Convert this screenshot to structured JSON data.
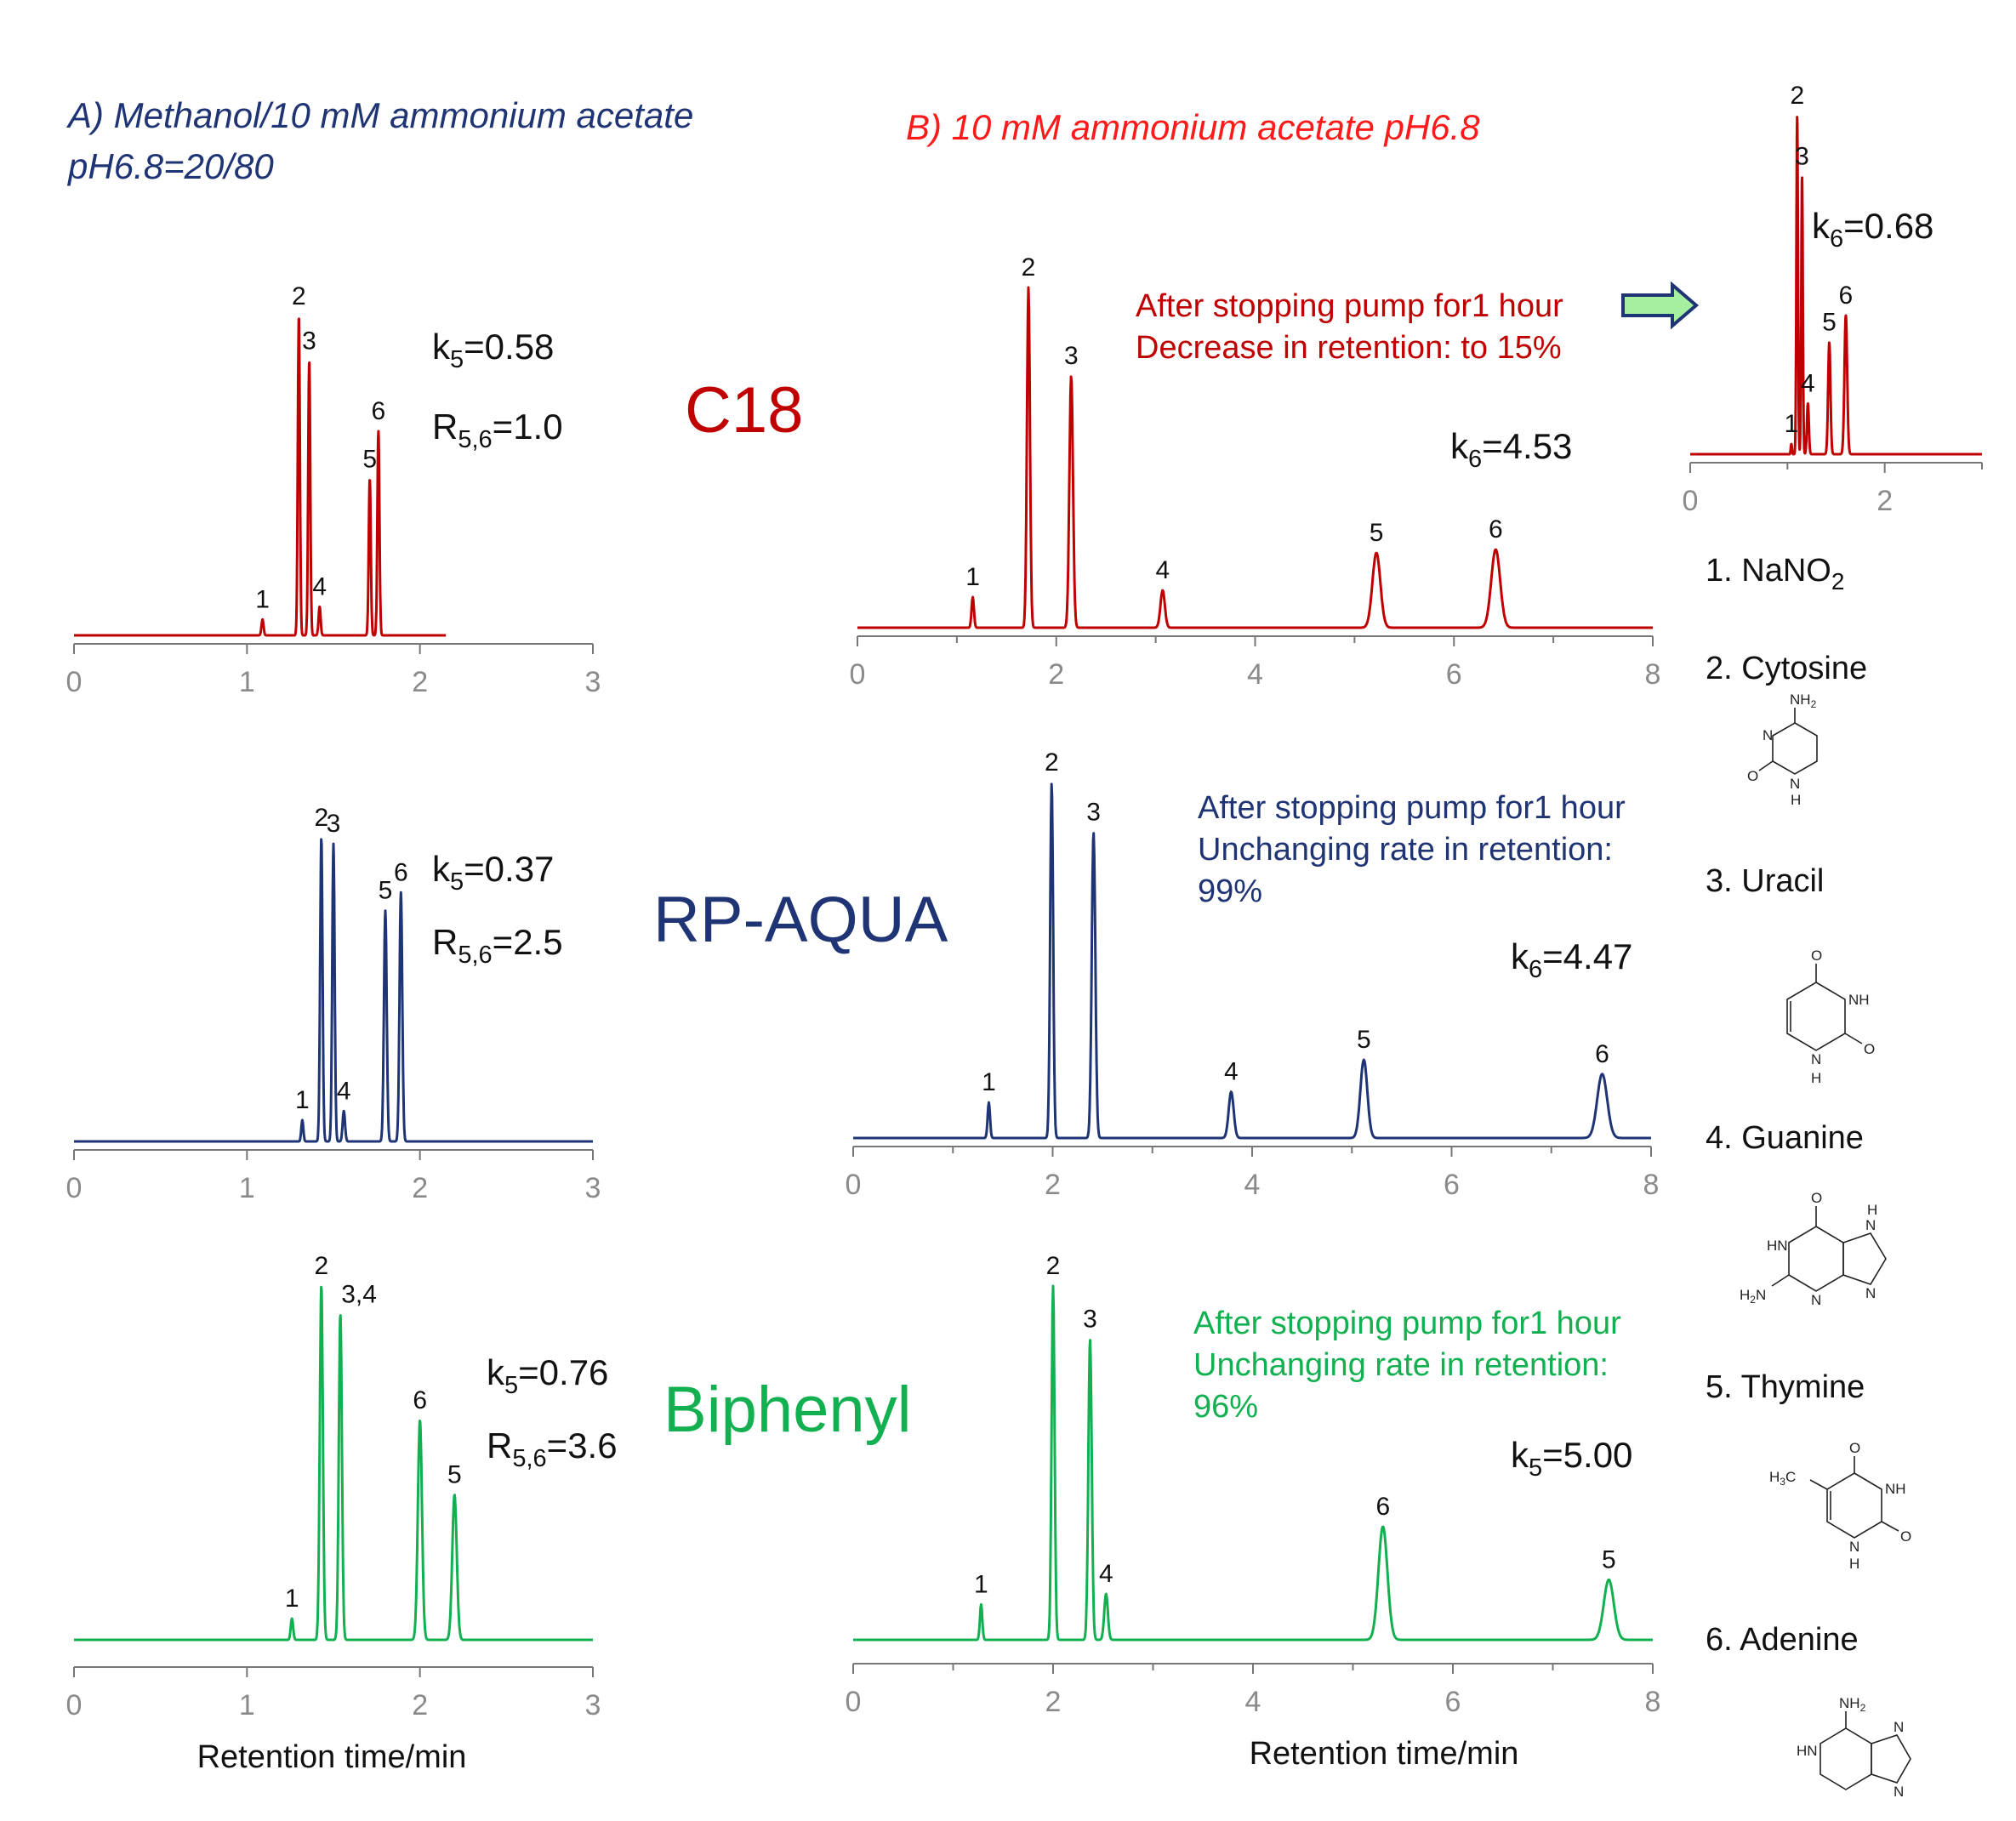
{
  "colors": {
    "c18": "#c00000",
    "aqua": "#1f3474",
    "biphenyl": "#12b050",
    "arrow_fill": "#a6ef9f",
    "arrow_stroke": "#1f3474"
  },
  "headers": {
    "a_line1": "A) Methanol/10 mM ammonium acetate",
    "a_line2": "pH6.8=20/80",
    "b": "B) 10 mM ammonium acetate pH6.8"
  },
  "columns": {
    "c18": "C18",
    "aqua": "RP-AQUA",
    "biphenyl": "Biphenyl"
  },
  "annotations": {
    "c18_a_k": {
      "sym": "k",
      "sub": "5",
      "val": "=0.58"
    },
    "c18_a_r": {
      "sym": "R",
      "sub": "5,6",
      "val": "=1.0"
    },
    "c18_b_k": {
      "sym": "k",
      "sub": "6",
      "val": "=4.53"
    },
    "c18_inset_k": {
      "sym": "k",
      "sub": "6",
      "val": "=0.68"
    },
    "c18_note1": "After stopping pump for1 hour",
    "c18_note2": "Decrease in retention: to 15%",
    "aqua_a_k": {
      "sym": "k",
      "sub": "5",
      "val": "=0.37"
    },
    "aqua_a_r": {
      "sym": "R",
      "sub": "5,6",
      "val": "=2.5"
    },
    "aqua_b_k": {
      "sym": "k",
      "sub": "6",
      "val": "=4.47"
    },
    "aqua_note1": "After stopping pump for1 hour",
    "aqua_note2": "Unchanging rate in retention:",
    "aqua_note3": "99%",
    "bip_a_k": {
      "sym": "k",
      "sub": "5",
      "val": "=0.76"
    },
    "bip_a_r": {
      "sym": "R",
      "sub": "5,6",
      "val": "=3.6"
    },
    "bip_b_k": {
      "sym": "k",
      "sub": "5",
      "val": "=5.00"
    },
    "bip_note1": "After stopping pump for1 hour",
    "bip_note2": "Unchanging rate in retention:",
    "bip_note3": "96%"
  },
  "compounds": [
    {
      "label": "1. NaNO",
      "sub": "2"
    },
    {
      "label": "2. Cytosine",
      "sub": ""
    },
    {
      "label": "3. Uracil",
      "sub": ""
    },
    {
      "label": "4. Guanine",
      "sub": ""
    },
    {
      "label": "5. Thymine",
      "sub": ""
    },
    {
      "label": "6. Adenine",
      "sub": ""
    }
  ],
  "structure_text": {
    "nh2": "NH",
    "two": "2",
    "n": "N",
    "nh": "NH",
    "h": "H",
    "o": "O",
    "hn": "HN",
    "h2n": "H",
    "h3c": "H"
  },
  "chart_data": [
    {
      "id": "c18_a",
      "type": "line",
      "title": "C18 — A) Methanol/10 mM ammonium acetate pH6.8=20/80",
      "xlabel": "",
      "ylabel": "",
      "xlim": [
        0,
        3
      ],
      "xticks": [
        "0",
        "1",
        "2",
        "3"
      ],
      "x_end": 2.15,
      "peaks": [
        {
          "label": "1",
          "t": 1.09,
          "h": 0.05,
          "w": 0.006
        },
        {
          "label": "2",
          "t": 1.3,
          "h": 1.0,
          "w": 0.006
        },
        {
          "label": "3",
          "t": 1.36,
          "h": 0.86,
          "w": 0.006
        },
        {
          "label": "4",
          "t": 1.42,
          "h": 0.09,
          "w": 0.006
        },
        {
          "label": "5",
          "t": 1.71,
          "h": 0.49,
          "w": 0.006
        },
        {
          "label": "6",
          "t": 1.76,
          "h": 0.64,
          "w": 0.006
        }
      ]
    },
    {
      "id": "c18_b",
      "type": "line",
      "title": "C18 — B) 10 mM ammonium acetate pH6.8",
      "xlabel": "",
      "ylabel": "",
      "xlim": [
        0,
        8
      ],
      "xticks": [
        "0",
        "2",
        "4",
        "6",
        "8"
      ],
      "x_end": 8,
      "peaks": [
        {
          "label": "1",
          "t": 1.16,
          "h": 0.09,
          "w": 0.012
        },
        {
          "label": "2",
          "t": 1.72,
          "h": 1.0,
          "w": 0.015
        },
        {
          "label": "3",
          "t": 2.15,
          "h": 0.74,
          "w": 0.018
        },
        {
          "label": "4",
          "t": 3.07,
          "h": 0.11,
          "w": 0.022
        },
        {
          "label": "5",
          "t": 5.22,
          "h": 0.22,
          "w": 0.04
        },
        {
          "label": "6",
          "t": 6.42,
          "h": 0.23,
          "w": 0.045
        }
      ]
    },
    {
      "id": "c18_inset",
      "type": "line",
      "title": "C18 — after stopping pump for 1 hour",
      "xlabel": "",
      "ylabel": "",
      "xlim": [
        0,
        3
      ],
      "xticks": [
        "0",
        "2"
      ],
      "x_end": 3,
      "peaks": [
        {
          "label": "1",
          "t": 1.04,
          "h": 0.03,
          "w": 0.006
        },
        {
          "label": "2",
          "t": 1.1,
          "h": 1.0,
          "w": 0.008
        },
        {
          "label": "3",
          "t": 1.15,
          "h": 0.82,
          "w": 0.008
        },
        {
          "label": "4",
          "t": 1.21,
          "h": 0.15,
          "w": 0.01
        },
        {
          "label": "5",
          "t": 1.43,
          "h": 0.33,
          "w": 0.012
        },
        {
          "label": "6",
          "t": 1.6,
          "h": 0.41,
          "w": 0.014
        }
      ]
    },
    {
      "id": "aqua_a",
      "type": "line",
      "title": "RP-AQUA — A)",
      "xlabel": "",
      "ylabel": "",
      "xlim": [
        0,
        3
      ],
      "xticks": [
        "0",
        "1",
        "2",
        "3"
      ],
      "x_end": 3,
      "peaks": [
        {
          "label": "1",
          "t": 1.32,
          "h": 0.07,
          "w": 0.006
        },
        {
          "label": "2",
          "t": 1.43,
          "h": 1.0,
          "w": 0.007
        },
        {
          "label": "3",
          "t": 1.5,
          "h": 0.98,
          "w": 0.007
        },
        {
          "label": "4",
          "t": 1.56,
          "h": 0.1,
          "w": 0.007
        },
        {
          "label": "5",
          "t": 1.8,
          "h": 0.76,
          "w": 0.008
        },
        {
          "label": "6",
          "t": 1.89,
          "h": 0.82,
          "w": 0.008
        }
      ]
    },
    {
      "id": "aqua_b",
      "type": "line",
      "title": "RP-AQUA — B)",
      "xlabel": "",
      "ylabel": "",
      "xlim": [
        0,
        8
      ],
      "xticks": [
        "0",
        "2",
        "4",
        "6",
        "8"
      ],
      "x_end": 8,
      "peaks": [
        {
          "label": "1",
          "t": 1.36,
          "h": 0.1,
          "w": 0.012
        },
        {
          "label": "2",
          "t": 1.99,
          "h": 1.0,
          "w": 0.015
        },
        {
          "label": "3",
          "t": 2.41,
          "h": 0.86,
          "w": 0.018
        },
        {
          "label": "4",
          "t": 3.79,
          "h": 0.13,
          "w": 0.025
        },
        {
          "label": "5",
          "t": 5.12,
          "h": 0.22,
          "w": 0.035
        },
        {
          "label": "6",
          "t": 7.51,
          "h": 0.18,
          "w": 0.05
        }
      ]
    },
    {
      "id": "bip_a",
      "type": "line",
      "title": "Biphenyl — A)",
      "xlabel": "Retention time/min",
      "ylabel": "",
      "xlim": [
        0,
        3
      ],
      "xticks": [
        "0",
        "1",
        "2",
        "3"
      ],
      "x_end": 3,
      "peaks": [
        {
          "label": "1",
          "t": 1.26,
          "h": 0.06,
          "w": 0.007
        },
        {
          "label": "2",
          "t": 1.43,
          "h": 1.0,
          "w": 0.009
        },
        {
          "label": "3,4",
          "t": 1.54,
          "h": 0.92,
          "w": 0.009
        },
        {
          "label": "6",
          "t": 2.0,
          "h": 0.62,
          "w": 0.012
        },
        {
          "label": "5",
          "t": 2.2,
          "h": 0.41,
          "w": 0.013
        }
      ]
    },
    {
      "id": "bip_b",
      "type": "line",
      "title": "Biphenyl — B)",
      "xlabel": "Retention time/min",
      "ylabel": "",
      "xlim": [
        0,
        8
      ],
      "xticks": [
        "0",
        "2",
        "4",
        "6",
        "8"
      ],
      "x_end": 8,
      "peaks": [
        {
          "label": "1",
          "t": 1.28,
          "h": 0.1,
          "w": 0.012
        },
        {
          "label": "2",
          "t": 2.0,
          "h": 1.0,
          "w": 0.015
        },
        {
          "label": "3",
          "t": 2.37,
          "h": 0.85,
          "w": 0.017
        },
        {
          "label": "4",
          "t": 2.53,
          "h": 0.13,
          "w": 0.018
        },
        {
          "label": "6",
          "t": 5.3,
          "h": 0.32,
          "w": 0.045
        },
        {
          "label": "5",
          "t": 7.56,
          "h": 0.17,
          "w": 0.05
        }
      ]
    }
  ]
}
